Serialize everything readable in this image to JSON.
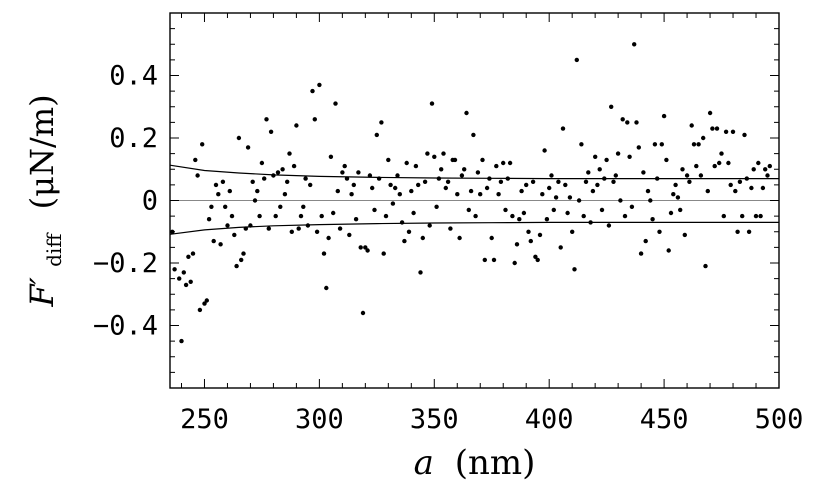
{
  "chart_data": {
    "type": "scatter",
    "title": "",
    "xlabel": {
      "symbol": "a",
      "unit": "(nm)"
    },
    "ylabel": {
      "symbol": "F′",
      "subscript": "diff",
      "unit": "(μN/m)"
    },
    "xlim": [
      235,
      500
    ],
    "ylim": [
      -0.6,
      0.6
    ],
    "x_ticks": [
      {
        "value": 250,
        "label": "250"
      },
      {
        "value": 300,
        "label": "300"
      },
      {
        "value": 350,
        "label": "350"
      },
      {
        "value": 400,
        "label": "400"
      },
      {
        "value": 450,
        "label": "450"
      },
      {
        "value": 500,
        "label": "500"
      }
    ],
    "y_ticks": [
      {
        "value": 0.4,
        "label": "0.4"
      },
      {
        "value": 0.2,
        "label": "0.2"
      },
      {
        "value": 0,
        "label": "0"
      },
      {
        "value": -0.2,
        "label": "−0.2"
      },
      {
        "value": -0.4,
        "label": "−0.4"
      }
    ],
    "grid": false,
    "zero_line": true,
    "series": [
      {
        "kind": "points",
        "points": [
          [
            236,
            -0.1
          ],
          [
            237,
            -0.22
          ],
          [
            239,
            -0.25
          ],
          [
            240,
            -0.45
          ],
          [
            241,
            -0.23
          ],
          [
            242,
            -0.27
          ],
          [
            243,
            -0.18
          ],
          [
            244,
            -0.26
          ],
          [
            245,
            -0.17
          ],
          [
            246,
            0.13
          ],
          [
            247,
            0.08
          ],
          [
            248,
            -0.35
          ],
          [
            249,
            0.18
          ],
          [
            250,
            -0.33
          ],
          [
            251,
            -0.32
          ],
          [
            252,
            -0.06
          ],
          [
            253,
            -0.02
          ],
          [
            254,
            -0.13
          ],
          [
            255,
            0.05
          ],
          [
            256,
            0.02
          ],
          [
            257,
            -0.14
          ],
          [
            258,
            0.06
          ],
          [
            259,
            -0.02
          ],
          [
            260,
            -0.08
          ],
          [
            261,
            0.03
          ],
          [
            262,
            -0.05
          ],
          [
            263,
            -0.11
          ],
          [
            264,
            -0.21
          ],
          [
            265,
            0.2
          ],
          [
            266,
            -0.19
          ],
          [
            267,
            -0.17
          ],
          [
            268,
            -0.09
          ],
          [
            269,
            0.17
          ],
          [
            270,
            -0.08
          ],
          [
            271,
            0.06
          ],
          [
            272,
            0.0
          ],
          [
            273,
            0.03
          ],
          [
            274,
            -0.05
          ],
          [
            275,
            0.12
          ],
          [
            276,
            0.07
          ],
          [
            277,
            0.26
          ],
          [
            278,
            -0.09
          ],
          [
            279,
            0.22
          ],
          [
            280,
            0.08
          ],
          [
            281,
            -0.05
          ],
          [
            282,
            0.09
          ],
          [
            283,
            -0.02
          ],
          [
            284,
            0.1
          ],
          [
            285,
            0.02
          ],
          [
            286,
            0.06
          ],
          [
            287,
            0.15
          ],
          [
            288,
            -0.1
          ],
          [
            289,
            0.11
          ],
          [
            290,
            0.24
          ],
          [
            291,
            -0.09
          ],
          [
            292,
            -0.05
          ],
          [
            293,
            -0.02
          ],
          [
            294,
            0.07
          ],
          [
            295,
            -0.08
          ],
          [
            296,
            0.05
          ],
          [
            297,
            0.35
          ],
          [
            298,
            0.26
          ],
          [
            299,
            -0.1
          ],
          [
            300,
            0.37
          ],
          [
            301,
            -0.05
          ],
          [
            302,
            -0.17
          ],
          [
            303,
            -0.28
          ],
          [
            304,
            -0.12
          ],
          [
            305,
            0.14
          ],
          [
            306,
            -0.04
          ],
          [
            307,
            0.31
          ],
          [
            308,
            0.03
          ],
          [
            309,
            -0.09
          ],
          [
            310,
            0.09
          ],
          [
            311,
            0.11
          ],
          [
            312,
            0.07
          ],
          [
            313,
            -0.11
          ],
          [
            314,
            0.02
          ],
          [
            315,
            0.05
          ],
          [
            316,
            -0.06
          ],
          [
            317,
            0.09
          ],
          [
            318,
            -0.15
          ],
          [
            319,
            -0.36
          ],
          [
            320,
            -0.15
          ],
          [
            321,
            -0.16
          ],
          [
            322,
            0.08
          ],
          [
            323,
            0.04
          ],
          [
            324,
            -0.03
          ],
          [
            325,
            0.21
          ],
          [
            326,
            0.07
          ],
          [
            327,
            0.25
          ],
          [
            328,
            -0.17
          ],
          [
            329,
            -0.05
          ],
          [
            330,
            0.13
          ],
          [
            331,
            0.05
          ],
          [
            332,
            -0.01
          ],
          [
            333,
            0.04
          ],
          [
            334,
            0.08
          ],
          [
            335,
            0.02
          ],
          [
            336,
            -0.07
          ],
          [
            337,
            -0.13
          ],
          [
            338,
            0.12
          ],
          [
            339,
            -0.1
          ],
          [
            340,
            0.03
          ],
          [
            341,
            -0.04
          ],
          [
            342,
            0.11
          ],
          [
            343,
            0.05
          ],
          [
            344,
            -0.23
          ],
          [
            345,
            -0.12
          ],
          [
            346,
            0.06
          ],
          [
            347,
            0.15
          ],
          [
            348,
            -0.08
          ],
          [
            349,
            0.31
          ],
          [
            350,
            0.14
          ],
          [
            351,
            -0.02
          ],
          [
            352,
            0.07
          ],
          [
            353,
            0.1
          ],
          [
            354,
            0.15
          ],
          [
            355,
            0.04
          ],
          [
            356,
            0.06
          ],
          [
            357,
            -0.09
          ],
          [
            358,
            0.13
          ],
          [
            359,
            0.13
          ],
          [
            360,
            0.02
          ],
          [
            361,
            -0.12
          ],
          [
            362,
            0.08
          ],
          [
            363,
            0.1
          ],
          [
            364,
            0.28
          ],
          [
            365,
            -0.03
          ],
          [
            366,
            0.03
          ],
          [
            367,
            0.21
          ],
          [
            368,
            -0.05
          ],
          [
            369,
            0.09
          ],
          [
            370,
            0.02
          ],
          [
            371,
            0.13
          ],
          [
            372,
            -0.19
          ],
          [
            373,
            0.04
          ],
          [
            374,
            0.07
          ],
          [
            375,
            -0.12
          ],
          [
            376,
            -0.19
          ],
          [
            377,
            0.11
          ],
          [
            378,
            0.02
          ],
          [
            379,
            0.06
          ],
          [
            380,
            0.12
          ],
          [
            381,
            -0.03
          ],
          [
            382,
            0.07
          ],
          [
            383,
            0.12
          ],
          [
            384,
            -0.05
          ],
          [
            385,
            -0.2
          ],
          [
            386,
            -0.14
          ],
          [
            387,
            -0.06
          ],
          [
            388,
            0.03
          ],
          [
            389,
            -0.04
          ],
          [
            390,
            0.05
          ],
          [
            391,
            -0.1
          ],
          [
            392,
            -0.13
          ],
          [
            393,
            0.06
          ],
          [
            394,
            -0.18
          ],
          [
            395,
            -0.19
          ],
          [
            396,
            -0.11
          ],
          [
            397,
            0.02
          ],
          [
            398,
            0.16
          ],
          [
            399,
            -0.06
          ],
          [
            400,
            0.04
          ],
          [
            401,
            0.08
          ],
          [
            402,
            -0.03
          ],
          [
            403,
            0.01
          ],
          [
            404,
            0.06
          ],
          [
            405,
            -0.15
          ],
          [
            406,
            0.23
          ],
          [
            407,
            0.05
          ],
          [
            408,
            -0.04
          ],
          [
            409,
            0.01
          ],
          [
            410,
            -0.1
          ],
          [
            411,
            -0.22
          ],
          [
            412,
            0.45
          ],
          [
            413,
            0.0
          ],
          [
            414,
            0.18
          ],
          [
            415,
            -0.05
          ],
          [
            416,
            0.06
          ],
          [
            417,
            0.09
          ],
          [
            418,
            -0.07
          ],
          [
            419,
            0.03
          ],
          [
            420,
            0.14
          ],
          [
            421,
            0.05
          ],
          [
            422,
            0.1
          ],
          [
            423,
            -0.03
          ],
          [
            424,
            0.07
          ],
          [
            425,
            0.13
          ],
          [
            426,
            -0.08
          ],
          [
            427,
            0.3
          ],
          [
            428,
            0.06
          ],
          [
            429,
            0.08
          ],
          [
            430,
            0.15
          ],
          [
            431,
            0.0
          ],
          [
            432,
            0.26
          ],
          [
            433,
            -0.05
          ],
          [
            434,
            0.25
          ],
          [
            435,
            0.14
          ],
          [
            436,
            -0.02
          ],
          [
            437,
            0.5
          ],
          [
            438,
            0.25
          ],
          [
            439,
            0.17
          ],
          [
            440,
            -0.17
          ],
          [
            441,
            0.09
          ],
          [
            442,
            -0.13
          ],
          [
            443,
            0.03
          ],
          [
            444,
            0.0
          ],
          [
            445,
            -0.06
          ],
          [
            446,
            0.18
          ],
          [
            447,
            0.07
          ],
          [
            448,
            -0.1
          ],
          [
            449,
            0.18
          ],
          [
            450,
            0.27
          ],
          [
            451,
            0.13
          ],
          [
            452,
            -0.16
          ],
          [
            453,
            -0.04
          ],
          [
            454,
            0.02
          ],
          [
            455,
            0.05
          ],
          [
            456,
            0.01
          ],
          [
            457,
            -0.03
          ],
          [
            458,
            0.1
          ],
          [
            459,
            -0.11
          ],
          [
            460,
            0.08
          ],
          [
            461,
            0.06
          ],
          [
            462,
            0.24
          ],
          [
            463,
            0.18
          ],
          [
            464,
            0.11
          ],
          [
            465,
            0.18
          ],
          [
            466,
            0.08
          ],
          [
            467,
            0.2
          ],
          [
            468,
            -0.21
          ],
          [
            469,
            0.03
          ],
          [
            470,
            0.28
          ],
          [
            471,
            0.23
          ],
          [
            472,
            0.11
          ],
          [
            473,
            0.23
          ],
          [
            474,
            0.12
          ],
          [
            475,
            0.15
          ],
          [
            476,
            -0.05
          ],
          [
            477,
            0.22
          ],
          [
            478,
            0.12
          ],
          [
            479,
            0.05
          ],
          [
            480,
            0.22
          ],
          [
            481,
            0.03
          ],
          [
            482,
            -0.1
          ],
          [
            483,
            0.06
          ],
          [
            484,
            -0.05
          ],
          [
            485,
            0.21
          ],
          [
            486,
            0.07
          ],
          [
            487,
            -0.1
          ],
          [
            488,
            0.04
          ],
          [
            489,
            0.1
          ],
          [
            490,
            -0.05
          ],
          [
            491,
            0.12
          ],
          [
            492,
            -0.05
          ],
          [
            493,
            0.04
          ],
          [
            494,
            0.1
          ],
          [
            495,
            0.08
          ],
          [
            496,
            0.11
          ]
        ]
      },
      {
        "kind": "line",
        "curve": "upper",
        "points": [
          [
            235,
            0.113
          ],
          [
            250,
            0.096
          ],
          [
            265,
            0.088
          ],
          [
            280,
            0.082
          ],
          [
            300,
            0.077
          ],
          [
            325,
            0.074
          ],
          [
            350,
            0.072
          ],
          [
            375,
            0.071
          ],
          [
            400,
            0.07
          ],
          [
            425,
            0.07
          ],
          [
            450,
            0.07
          ],
          [
            475,
            0.07
          ],
          [
            500,
            0.07
          ]
        ]
      },
      {
        "kind": "line",
        "curve": "lower",
        "points": [
          [
            235,
            -0.108
          ],
          [
            250,
            -0.094
          ],
          [
            265,
            -0.086
          ],
          [
            280,
            -0.081
          ],
          [
            300,
            -0.077
          ],
          [
            325,
            -0.074
          ],
          [
            350,
            -0.072
          ],
          [
            375,
            -0.071
          ],
          [
            400,
            -0.07
          ],
          [
            425,
            -0.07
          ],
          [
            450,
            -0.07
          ],
          [
            475,
            -0.07
          ],
          [
            500,
            -0.07
          ]
        ]
      }
    ],
    "style": {
      "point_color": "#000000",
      "line_color": "#000000",
      "zero_line_color": "#888888",
      "frame_color": "#000000",
      "background": "#ffffff"
    }
  }
}
